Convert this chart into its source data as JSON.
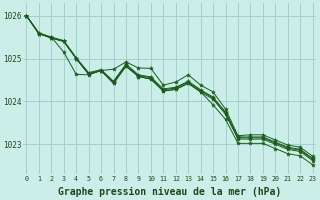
{
  "background_color": "#cceee8",
  "grid_color": "#99cccc",
  "line_color": "#1a5c1a",
  "xlabel": "Graphe pression niveau de la mer (hPa)",
  "xlabel_fontsize": 7,
  "ylim": [
    1022.3,
    1026.3
  ],
  "xlim": [
    -0.3,
    23.3
  ],
  "yticks": [
    1023,
    1024,
    1025,
    1026
  ],
  "xticks": [
    0,
    1,
    2,
    3,
    4,
    5,
    6,
    7,
    8,
    9,
    10,
    11,
    12,
    13,
    14,
    15,
    16,
    17,
    18,
    19,
    20,
    21,
    22,
    23
  ],
  "series": [
    [
      1026.0,
      1025.58,
      1025.48,
      1025.4,
      1025.0,
      1024.63,
      1024.72,
      1024.42,
      1024.82,
      1024.58,
      1024.52,
      1024.24,
      1024.28,
      1024.42,
      1024.22,
      1023.92,
      1023.58,
      1023.02,
      1023.02,
      1023.02,
      1022.9,
      1022.78,
      1022.73,
      1022.52
    ],
    [
      1026.0,
      1025.58,
      1025.48,
      1025.4,
      1025.0,
      1024.63,
      1024.72,
      1024.42,
      1024.82,
      1024.58,
      1024.52,
      1024.24,
      1024.28,
      1024.42,
      1024.22,
      1024.05,
      1023.7,
      1023.12,
      1023.12,
      1023.12,
      1023.0,
      1022.88,
      1022.83,
      1022.62
    ],
    [
      1026.0,
      1025.58,
      1025.48,
      1025.4,
      1025.0,
      1024.65,
      1024.72,
      1024.45,
      1024.85,
      1024.6,
      1024.55,
      1024.27,
      1024.31,
      1024.45,
      1024.25,
      1024.08,
      1023.73,
      1023.15,
      1023.15,
      1023.15,
      1023.03,
      1022.91,
      1022.86,
      1022.65
    ],
    [
      1026.0,
      1025.6,
      1025.5,
      1025.42,
      1025.02,
      1024.67,
      1024.74,
      1024.47,
      1024.87,
      1024.62,
      1024.57,
      1024.29,
      1024.33,
      1024.47,
      1024.27,
      1024.1,
      1023.75,
      1023.17,
      1023.17,
      1023.17,
      1023.05,
      1022.93,
      1022.88,
      1022.67
    ],
    [
      1026.0,
      1025.58,
      1025.5,
      1025.15,
      1024.63,
      1024.62,
      1024.72,
      1024.75,
      1024.92,
      1024.78,
      1024.77,
      1024.38,
      1024.45,
      1024.62,
      1024.38,
      1024.22,
      1023.82,
      1023.2,
      1023.22,
      1023.22,
      1023.1,
      1022.98,
      1022.93,
      1022.72
    ]
  ],
  "marker_style": "*",
  "marker_size": 3,
  "line_width": 0.7
}
